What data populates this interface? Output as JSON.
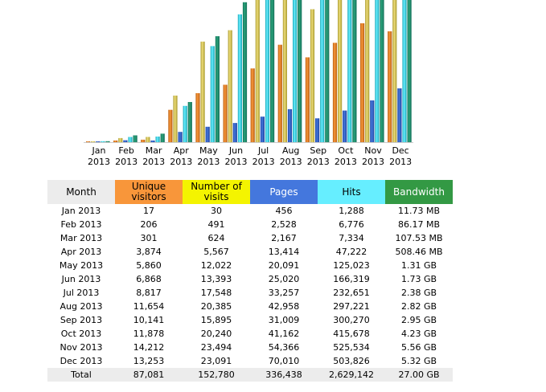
{
  "colors": {
    "visitors": "#f8963a",
    "visits": "#f4f400",
    "pages": "#4477dd",
    "hits": "#66eeff",
    "bandwidth": "#339944"
  },
  "table": {
    "headers": {
      "month": "Month",
      "unique": "Unique visitors",
      "visits": "Number of visits",
      "pages": "Pages",
      "hits": "Hits",
      "bandwidth": "Bandwidth"
    },
    "rows": [
      {
        "month": "Jan 2013",
        "unique": "17",
        "visits": "30",
        "pages": "456",
        "hits": "1,288",
        "bandwidth": "11.73 MB"
      },
      {
        "month": "Feb 2013",
        "unique": "206",
        "visits": "491",
        "pages": "2,528",
        "hits": "6,776",
        "bandwidth": "86.17 MB"
      },
      {
        "month": "Mar 2013",
        "unique": "301",
        "visits": "624",
        "pages": "2,167",
        "hits": "7,334",
        "bandwidth": "107.53 MB"
      },
      {
        "month": "Apr 2013",
        "unique": "3,874",
        "visits": "5,567",
        "pages": "13,414",
        "hits": "47,222",
        "bandwidth": "508.46 MB"
      },
      {
        "month": "May 2013",
        "unique": "5,860",
        "visits": "12,022",
        "pages": "20,091",
        "hits": "125,023",
        "bandwidth": "1.31 GB"
      },
      {
        "month": "Jun 2013",
        "unique": "6,868",
        "visits": "13,393",
        "pages": "25,020",
        "hits": "166,319",
        "bandwidth": "1.73 GB"
      },
      {
        "month": "Jul 2013",
        "unique": "8,817",
        "visits": "17,548",
        "pages": "33,257",
        "hits": "232,651",
        "bandwidth": "2.38 GB"
      },
      {
        "month": "Aug 2013",
        "unique": "11,654",
        "visits": "20,385",
        "pages": "42,958",
        "hits": "297,221",
        "bandwidth": "2.82 GB"
      },
      {
        "month": "Sep 2013",
        "unique": "10,141",
        "visits": "15,895",
        "pages": "31,009",
        "hits": "300,270",
        "bandwidth": "2.95 GB"
      },
      {
        "month": "Oct 2013",
        "unique": "11,878",
        "visits": "20,240",
        "pages": "41,162",
        "hits": "415,678",
        "bandwidth": "4.23 GB"
      },
      {
        "month": "Nov 2013",
        "unique": "14,212",
        "visits": "23,494",
        "pages": "54,366",
        "hits": "525,534",
        "bandwidth": "5.56 GB"
      },
      {
        "month": "Dec 2013",
        "unique": "13,253",
        "visits": "23,091",
        "pages": "70,010",
        "hits": "503,826",
        "bandwidth": "5.32 GB"
      }
    ],
    "total": {
      "month": "Total",
      "unique": "87,081",
      "visits": "152,780",
      "pages": "336,438",
      "hits": "2,629,142",
      "bandwidth": "27.00 GB"
    }
  },
  "chart_data": {
    "type": "bar",
    "categories": [
      "Jan 2013",
      "Feb 2013",
      "Mar 2013",
      "Apr 2013",
      "May 2013",
      "Jun 2013",
      "Jul 2013",
      "Aug 2013",
      "Sep 2013",
      "Oct 2013",
      "Nov 2013",
      "Dec 2013"
    ],
    "month_labels": [
      [
        "Jan",
        "2013"
      ],
      [
        "Feb",
        "2013"
      ],
      [
        "Mar",
        "2013"
      ],
      [
        "Apr",
        "2013"
      ],
      [
        "May",
        "2013"
      ],
      [
        "Jun",
        "2013"
      ],
      [
        "Jul",
        "2013"
      ],
      [
        "Aug",
        "2013"
      ],
      [
        "Sep",
        "2013"
      ],
      [
        "Oct",
        "2013"
      ],
      [
        "Nov",
        "2013"
      ],
      [
        "Dec",
        "2013"
      ]
    ],
    "series": [
      {
        "name": "Unique visitors",
        "values": [
          17,
          206,
          301,
          3874,
          5860,
          6868,
          8817,
          11654,
          10141,
          11878,
          14212,
          13253
        ]
      },
      {
        "name": "Number of visits",
        "values": [
          30,
          491,
          624,
          5567,
          12022,
          13393,
          17548,
          20385,
          15895,
          20240,
          23494,
          23091
        ]
      },
      {
        "name": "Pages",
        "values": [
          456,
          2528,
          2167,
          13414,
          20091,
          25020,
          33257,
          42958,
          31009,
          41162,
          54366,
          70010
        ]
      },
      {
        "name": "Hits",
        "values": [
          1288,
          6776,
          7334,
          47222,
          125023,
          166319,
          232651,
          297221,
          300270,
          415678,
          525534,
          503826
        ]
      },
      {
        "name": "Bandwidth",
        "values": [
          11.73,
          86.17,
          107.53,
          508.46,
          1341,
          1772,
          2437,
          2888,
          3021,
          4332,
          5693,
          5448
        ],
        "unit": "MB"
      }
    ],
    "scale_max": {
      "visitors": 17000,
      "visits": 17000,
      "pages": 185000,
      "hits": 185000,
      "bandwidth": 1800
    }
  }
}
